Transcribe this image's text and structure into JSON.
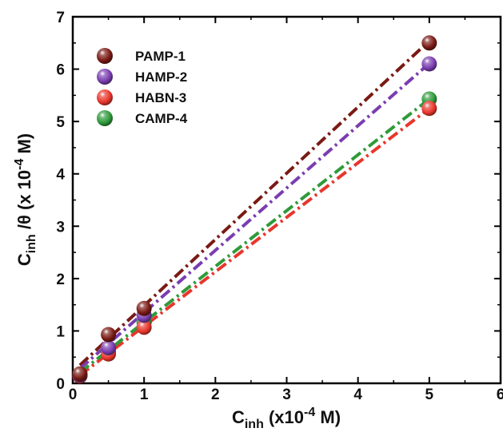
{
  "chart_data": {
    "type": "scatter",
    "xlabel": {
      "main": "C",
      "sub": "inh",
      "rest": " (x10",
      "sup": "-4",
      "end": " M)"
    },
    "ylabel": {
      "main": "C",
      "sub": "inh",
      "rest": " /θ  (x 10",
      "sup": "-4",
      "end": " M)"
    },
    "xlim": [
      0,
      6
    ],
    "ylim": [
      0,
      7
    ],
    "xticks": [
      "0",
      "1",
      "2",
      "3",
      "4",
      "5",
      "6"
    ],
    "yticks": [
      "0",
      "1",
      "2",
      "3",
      "4",
      "5",
      "6",
      "7"
    ],
    "legend_position": "top-left",
    "grid": false,
    "series": [
      {
        "name": "PAMP-1",
        "color": "#7a1a14",
        "x": [
          0.1,
          0.5,
          1,
          5
        ],
        "y": [
          0.18,
          0.93,
          1.43,
          6.5
        ],
        "fit": [
          0.22,
          1.264
        ]
      },
      {
        "name": "HAMP-2",
        "color": "#7a3db0",
        "x": [
          0.1,
          0.5,
          1,
          5
        ],
        "y": [
          0.16,
          0.68,
          1.3,
          6.1
        ],
        "fit": [
          0.16,
          1.19
        ]
      },
      {
        "name": "HABN-3",
        "color": "#e8362c",
        "x": [
          0.1,
          0.5,
          1,
          5
        ],
        "y": [
          0.14,
          0.56,
          1.07,
          5.25
        ],
        "fit": [
          0.05,
          1.04
        ]
      },
      {
        "name": "CAMP-4",
        "color": "#2f9a3a",
        "x": [
          0.1,
          0.5,
          1,
          5
        ],
        "y": [
          0.15,
          0.6,
          1.16,
          5.43
        ],
        "fit": [
          0.1,
          1.066
        ]
      }
    ]
  }
}
